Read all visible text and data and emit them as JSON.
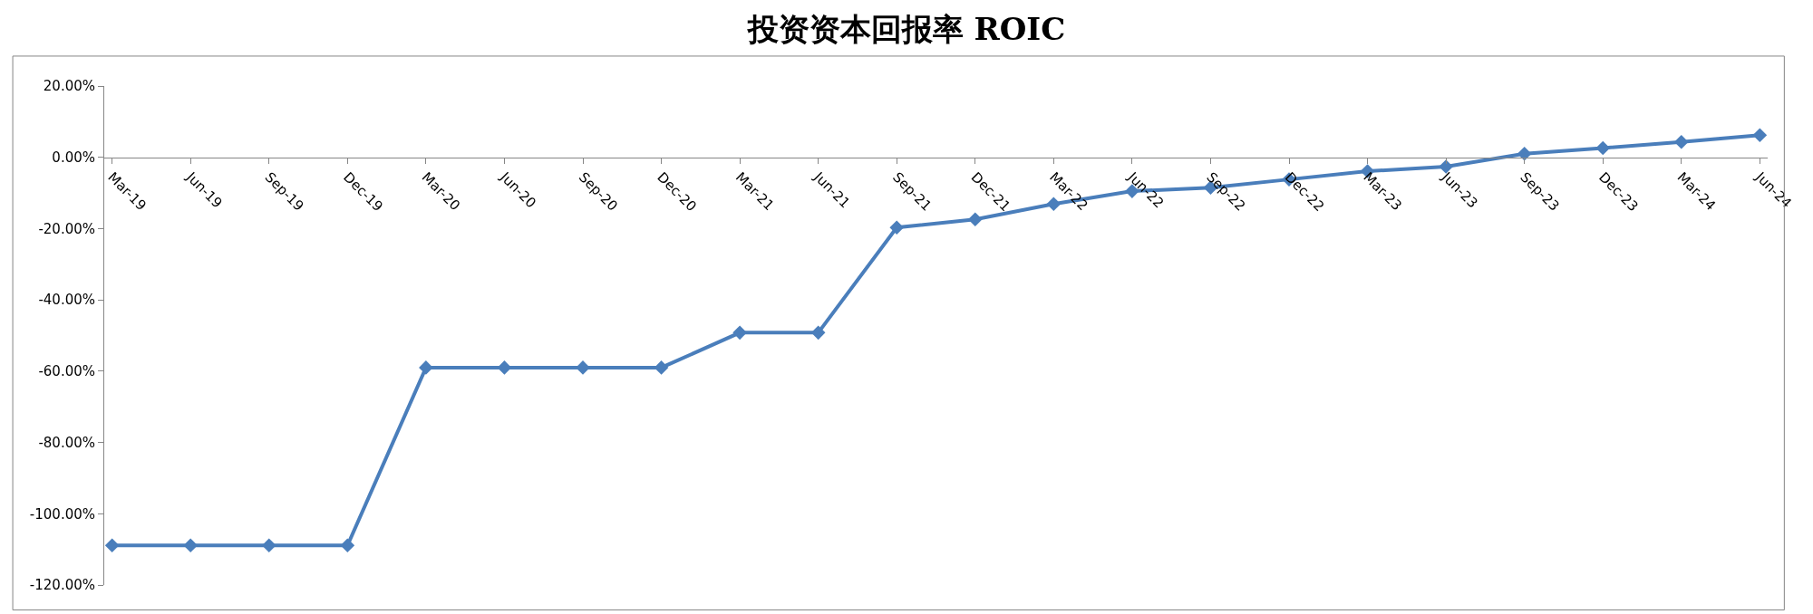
{
  "chart_data": {
    "type": "line",
    "title": "投资资本回报率 ROIC",
    "categories": [
      "Mar-19",
      "Jun-19",
      "Sep-19",
      "Dec-19",
      "Mar-20",
      "Jun-20",
      "Sep-20",
      "Dec-20",
      "Mar-21",
      "Jun-21",
      "Sep-21",
      "Dec-21",
      "Mar-22",
      "Jun-22",
      "Sep-22",
      "Dec-22",
      "Mar-23",
      "Jun-23",
      "Sep-23",
      "Dec-23",
      "Mar-24",
      "Jun-24"
    ],
    "series": [
      {
        "color": "#4a7ebb",
        "values": [
          -108.9,
          -108.9,
          -108.9,
          -108.9,
          -59.0,
          -59.0,
          -59.0,
          -59.0,
          -49.2,
          -49.2,
          -19.7,
          -17.4,
          -13.1,
          -9.5,
          -8.5,
          -6.2,
          -3.9,
          -2.6,
          1.0,
          2.6,
          4.3,
          6.2
        ]
      }
    ],
    "ylim": [
      -120,
      20
    ],
    "yticks": [
      {
        "value": 20,
        "label": "20.00%"
      },
      {
        "value": 0,
        "label": "0.00%"
      },
      {
        "value": -20,
        "label": "-20.00%"
      },
      {
        "value": -40,
        "label": "-40.00%"
      },
      {
        "value": -60,
        "label": "-60.00%"
      },
      {
        "value": -80,
        "label": "-80.00%"
      },
      {
        "value": -100,
        "label": "-100.00%"
      },
      {
        "value": -120,
        "label": "-120.00%"
      }
    ],
    "legend": false,
    "marker": "diamond",
    "line_style": "solid"
  }
}
